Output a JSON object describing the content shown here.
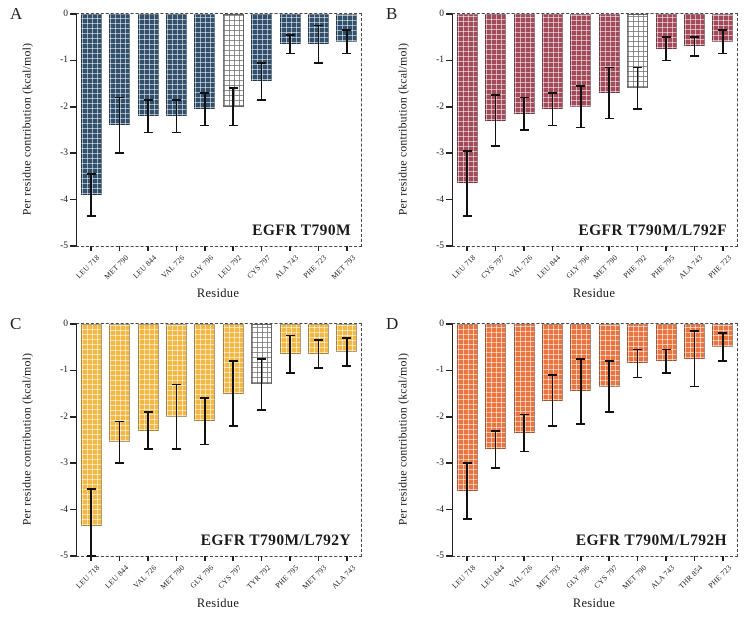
{
  "figure": {
    "ylabel": "Per residue contribution (kcal/mol)",
    "xlabel": "Residue"
  },
  "chart_data": [
    {
      "type": "bar",
      "panel_label": "A",
      "annotation": "EGFR T790M",
      "xlabel": "Residue",
      "ylabel": "Per residue contribution (kcal/mol)",
      "ylim": [
        -5,
        0
      ],
      "yticks": [
        0,
        -1,
        -2,
        -3,
        -4,
        -5
      ],
      "grid": false,
      "legend": "none",
      "bar_color": "#31506e",
      "hatch_color": "rgba(255,255,255,0.55)",
      "highlight_index": 5,
      "highlight_color": "#ffffff",
      "highlight_hatch_color": "rgba(110,110,110,0.75)",
      "categories": [
        "LEU 718",
        "MET 790",
        "LEU 844",
        "VAL 726",
        "GLY 796",
        "LEU 792",
        "CYS 797",
        "ALA 743",
        "PHE 723",
        "MET 793"
      ],
      "values": [
        -3.9,
        -2.4,
        -2.2,
        -2.2,
        -2.05,
        -2.0,
        -1.45,
        -0.65,
        -0.65,
        -0.6
      ],
      "errors": [
        0.45,
        0.6,
        0.35,
        0.35,
        0.35,
        0.4,
        0.4,
        0.2,
        0.4,
        0.25
      ]
    },
    {
      "type": "bar",
      "panel_label": "B",
      "annotation": "EGFR T790M/L792F",
      "xlabel": "Residue",
      "ylabel": "Per residue contribution (kcal/mol)",
      "ylim": [
        -5,
        0
      ],
      "yticks": [
        0,
        -1,
        -2,
        -3,
        -4,
        -5
      ],
      "grid": false,
      "legend": "none",
      "bar_color": "#a34a5a",
      "hatch_color": "rgba(255,255,255,0.55)",
      "highlight_index": 6,
      "highlight_color": "#ffffff",
      "highlight_hatch_color": "rgba(110,110,110,0.75)",
      "categories": [
        "LEU 718",
        "CYS 797",
        "VAL 726",
        "LEU 844",
        "GLY 796",
        "MET 790",
        "PHE 792",
        "PHE 795",
        "ALA 743",
        "PHE 723"
      ],
      "values": [
        -3.65,
        -2.3,
        -2.15,
        -2.05,
        -2.0,
        -1.7,
        -1.6,
        -0.75,
        -0.7,
        -0.6
      ],
      "errors": [
        0.7,
        0.55,
        0.35,
        0.35,
        0.45,
        0.55,
        0.45,
        0.25,
        0.2,
        0.25
      ]
    },
    {
      "type": "bar",
      "panel_label": "C",
      "annotation": "EGFR T790M/L792Y",
      "xlabel": "Residue",
      "ylabel": "Per residue contribution (kcal/mol)",
      "ylim": [
        -5,
        0
      ],
      "yticks": [
        0,
        -1,
        -2,
        -3,
        -4,
        -5
      ],
      "grid": false,
      "legend": "none",
      "bar_color": "#f2b844",
      "hatch_color": "rgba(255,255,255,0.55)",
      "highlight_index": 6,
      "highlight_color": "#ffffff",
      "highlight_hatch_color": "rgba(110,110,110,0.75)",
      "categories": [
        "LEU 718",
        "LEU 844",
        "VAL 726",
        "MET 790",
        "GLY 796",
        "CYS 797",
        "TYR 792",
        "PHE 795",
        "MET 793",
        "ALA 743"
      ],
      "values": [
        -4.35,
        -2.55,
        -2.3,
        -2.0,
        -2.1,
        -1.5,
        -1.3,
        -0.65,
        -0.65,
        -0.6
      ],
      "errors": [
        0.8,
        0.45,
        0.4,
        0.7,
        0.5,
        0.7,
        0.55,
        0.4,
        0.3,
        0.3
      ]
    },
    {
      "type": "bar",
      "panel_label": "D",
      "annotation": "EGFR T790M/L792H",
      "xlabel": "Residue",
      "ylabel": "Per residue contribution (kcal/mol)",
      "ylim": [
        -5,
        0
      ],
      "yticks": [
        0,
        -1,
        -2,
        -3,
        -4,
        -5
      ],
      "grid": false,
      "legend": "none",
      "bar_color": "#e8743f",
      "hatch_color": "rgba(255,255,255,0.55)",
      "highlight_index": -1,
      "highlight_color": "#ffffff",
      "highlight_hatch_color": "rgba(110,110,110,0.75)",
      "categories": [
        "LEU 718",
        "LEU 844",
        "VAL 726",
        "MET 793",
        "GLY 796",
        "CYS 797",
        "MET 790",
        "ALA 743",
        "THR 854",
        "PHE 723"
      ],
      "values": [
        -3.6,
        -2.7,
        -2.35,
        -1.65,
        -1.45,
        -1.35,
        -0.85,
        -0.8,
        -0.75,
        -0.5
      ],
      "errors": [
        0.6,
        0.4,
        0.4,
        0.55,
        0.7,
        0.55,
        0.3,
        0.25,
        0.6,
        0.3
      ]
    }
  ]
}
